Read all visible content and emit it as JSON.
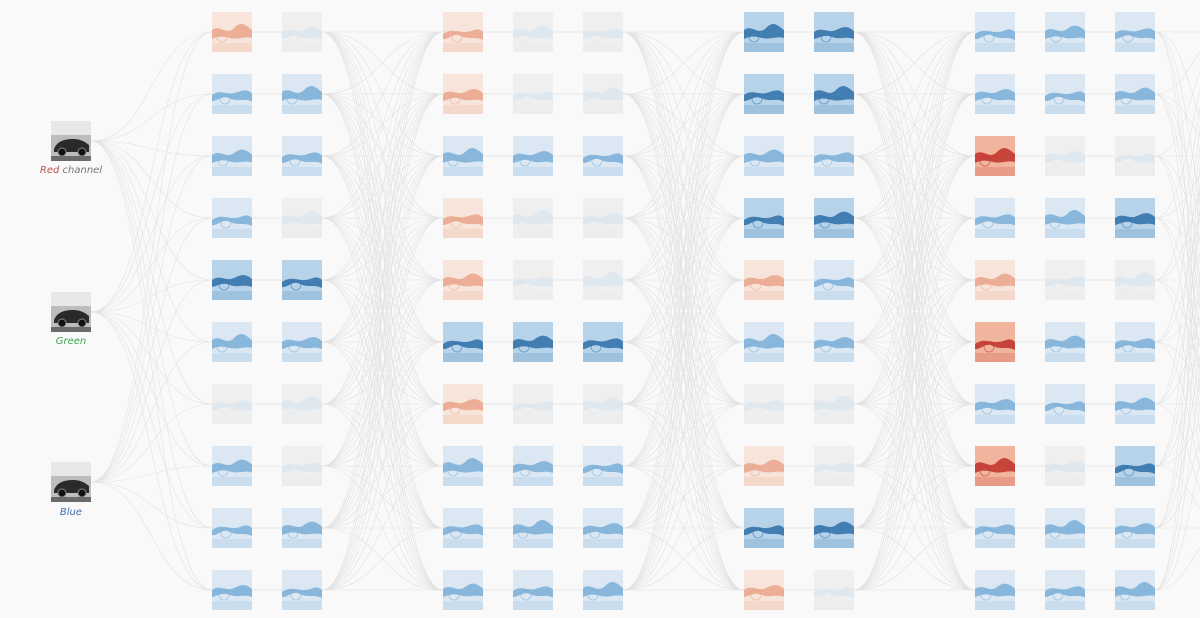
{
  "inputs": [
    {
      "label": "Red",
      "suffix": "channel"
    },
    {
      "label": "Green"
    },
    {
      "label": "Blue"
    }
  ]
}
